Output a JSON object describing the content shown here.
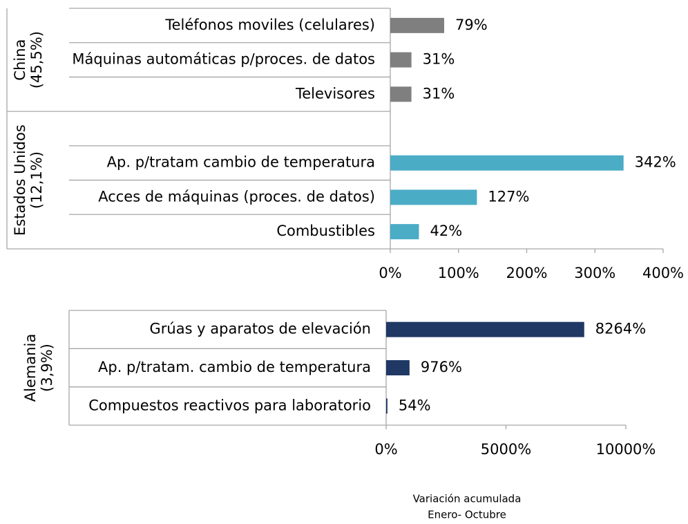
{
  "chart_data": [
    {
      "type": "bar",
      "orientation": "horizontal",
      "groups": [
        {
          "label": [
            "China",
            "(45,5%)"
          ],
          "color": "#7f7f7f",
          "categories": [
            "Teléfonos moviles (celulares)",
            "Máquinas automáticas p/proces. de datos",
            "Televisores"
          ],
          "values": [
            79,
            31,
            31
          ],
          "value_labels": [
            "79%",
            "31%",
            "31%"
          ]
        },
        {
          "label": [
            "Estados Unidos",
            "(12,1%)"
          ],
          "color": "#4bacc6",
          "categories": [
            null,
            "Ap. p/tratam cambio de temperatura",
            "Acces de máquinas (proces. de datos)",
            "Combustibles"
          ],
          "values": [
            null,
            342,
            127,
            42
          ],
          "value_labels": [
            null,
            "342%",
            "127%",
            "42%"
          ]
        }
      ],
      "xlim": [
        0,
        400
      ],
      "xticks": [
        {
          "value": 0,
          "label": "0%"
        },
        {
          "value": 100,
          "label": "100%"
        },
        {
          "value": 200,
          "label": "200%"
        },
        {
          "value": 300,
          "label": "300%"
        },
        {
          "value": 400,
          "label": "400%"
        }
      ]
    },
    {
      "type": "bar",
      "orientation": "horizontal",
      "groups": [
        {
          "label": [
            "Alemania",
            "(3,9%)"
          ],
          "color": "#1f3864",
          "categories": [
            "Grúas y aparatos de elevación",
            "Ap. p/tratam. cambio de temperatura",
            "Compuestos reactivos para laboratorio"
          ],
          "values": [
            8264,
            976,
            54
          ],
          "value_labels": [
            "8264%",
            "976%",
            "54%"
          ]
        }
      ],
      "xlim": [
        0,
        10000
      ],
      "xticks": [
        {
          "value": 0,
          "label": "0%"
        },
        {
          "value": 5000,
          "label": "5000%"
        },
        {
          "value": 10000,
          "label": "10000%"
        }
      ],
      "xlabel": [
        "Variación acumulada",
        "Enero- Octubre"
      ]
    }
  ]
}
